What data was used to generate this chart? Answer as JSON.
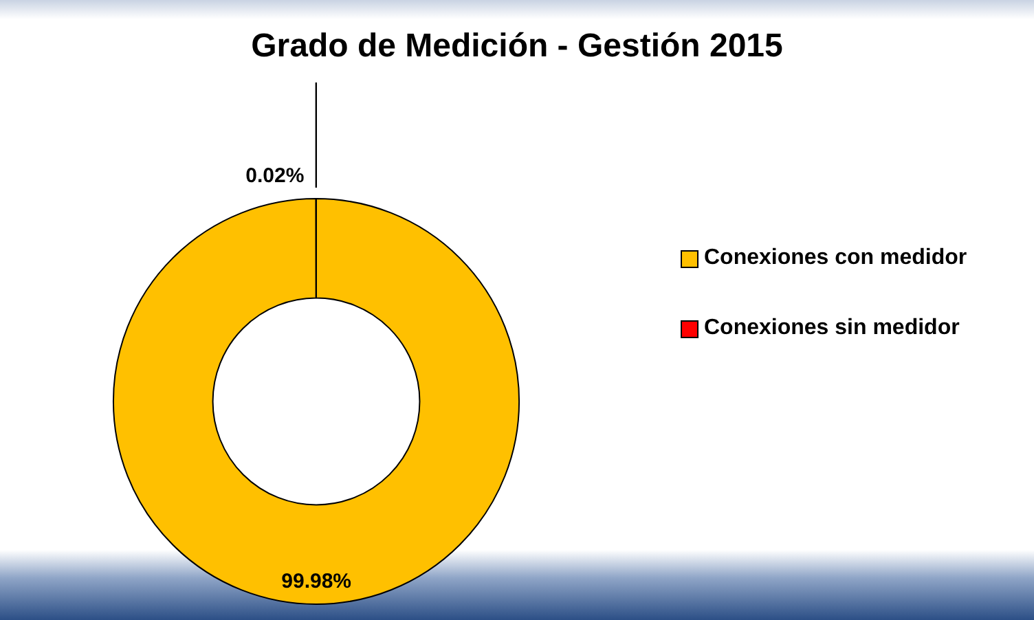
{
  "chart_data": {
    "type": "donut",
    "title": "Grado de Medición - Gestión 2015",
    "categories": [
      "Conexiones con medidor",
      "Conexiones sin medidor"
    ],
    "values": [
      99.98,
      0.02
    ],
    "colors": [
      "#ffc000",
      "#ff0000"
    ],
    "value_labels": [
      "99.98%",
      "0.02%"
    ],
    "legend": "right"
  }
}
